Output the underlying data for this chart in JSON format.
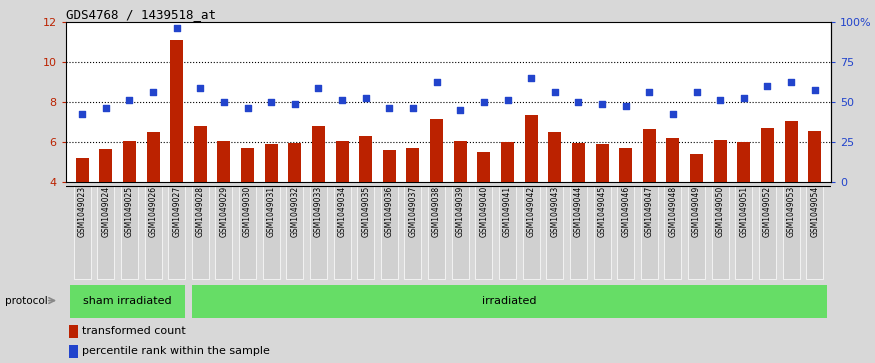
{
  "title": "GDS4768 / 1439518_at",
  "categories": [
    "GSM1049023",
    "GSM1049024",
    "GSM1049025",
    "GSM1049026",
    "GSM1049027",
    "GSM1049028",
    "GSM1049029",
    "GSM1049030",
    "GSM1049031",
    "GSM1049032",
    "GSM1049033",
    "GSM1049034",
    "GSM1049035",
    "GSM1049036",
    "GSM1049037",
    "GSM1049038",
    "GSM1049039",
    "GSM1049040",
    "GSM1049041",
    "GSM1049042",
    "GSM1049043",
    "GSM1049044",
    "GSM1049045",
    "GSM1049046",
    "GSM1049047",
    "GSM1049048",
    "GSM1049049",
    "GSM1049050",
    "GSM1049051",
    "GSM1049052",
    "GSM1049053",
    "GSM1049054"
  ],
  "bar_values": [
    5.2,
    5.65,
    6.05,
    6.5,
    11.1,
    6.8,
    6.05,
    5.7,
    5.9,
    5.95,
    6.8,
    6.05,
    6.3,
    5.6,
    5.7,
    7.15,
    6.05,
    5.5,
    6.0,
    7.35,
    6.5,
    5.95,
    5.9,
    5.7,
    6.65,
    6.2,
    5.4,
    6.1,
    6.0,
    6.7,
    7.05,
    6.55
  ],
  "blue_values": [
    7.4,
    7.7,
    8.1,
    8.5,
    11.7,
    8.7,
    8.0,
    7.7,
    8.0,
    7.9,
    8.7,
    8.1,
    8.2,
    7.7,
    7.7,
    9.0,
    7.6,
    8.0,
    8.1,
    9.2,
    8.5,
    8.0,
    7.9,
    7.8,
    8.5,
    7.4,
    8.5,
    8.1,
    8.2,
    8.8,
    9.0,
    8.6
  ],
  "bar_color": "#bb2200",
  "blue_color": "#2244cc",
  "ylim_left": [
    4,
    12
  ],
  "ylim_right": [
    0,
    100
  ],
  "yticks_left": [
    4,
    6,
    8,
    10,
    12
  ],
  "yticks_right": [
    0,
    25,
    50,
    75,
    100
  ],
  "ytick_right_labels": [
    "0",
    "25",
    "50",
    "75",
    "100%"
  ],
  "sham_count": 5,
  "group_labels": [
    "sham irradiated",
    "irradiated"
  ],
  "group_color": "#66dd66",
  "protocol_label": "protocol",
  "legend_items": [
    "transformed count",
    "percentile rank within the sample"
  ],
  "fig_bg": "#d8d8d8",
  "plot_bg": "#ffffff",
  "tick_box_bg": "#d0d0d0",
  "dotted_lines": [
    6,
    8,
    10
  ]
}
